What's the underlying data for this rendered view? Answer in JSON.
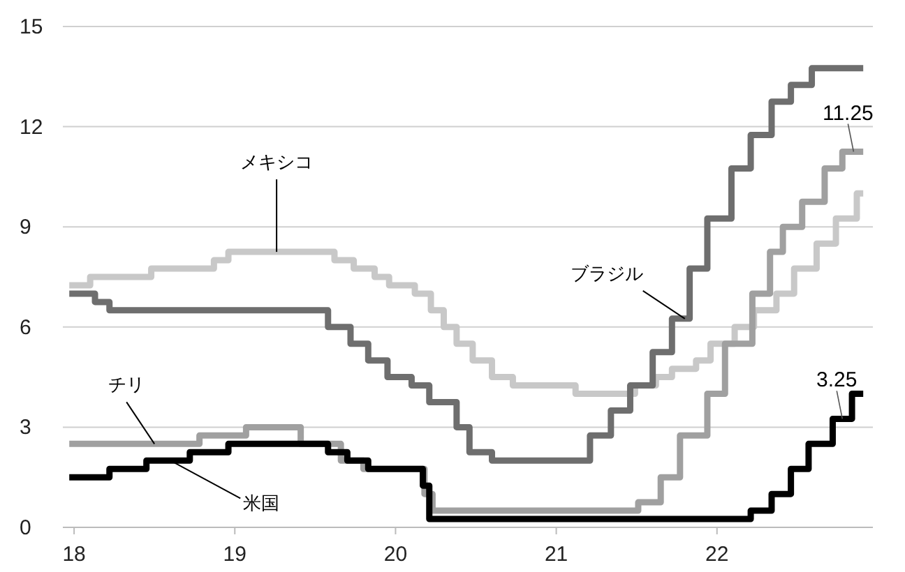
{
  "chart_data": {
    "type": "step",
    "xlim": [
      17.93,
      22.97
    ],
    "xticks": [
      18,
      19,
      20,
      21,
      22
    ],
    "ylim": [
      0,
      15
    ],
    "yticks": [
      0,
      3,
      6,
      9,
      12,
      15
    ],
    "grid": "y",
    "series": [
      {
        "name": "メキシコ",
        "color": "#c8c8c8",
        "x": [
          17.97,
          18.1,
          18.48,
          18.87,
          18.96,
          19.62,
          19.74,
          19.87,
          19.96,
          20.12,
          20.22,
          20.3,
          20.38,
          20.48,
          20.6,
          20.73,
          21.12,
          21.49,
          21.62,
          21.72,
          21.87,
          21.96,
          22.11,
          22.23,
          22.37,
          22.48,
          22.62,
          22.74,
          22.87,
          22.91
        ],
        "values": [
          7.25,
          7.5,
          7.75,
          8.0,
          8.25,
          8.0,
          7.75,
          7.5,
          7.25,
          7.0,
          6.5,
          6.0,
          5.5,
          5.0,
          4.5,
          4.25,
          4.0,
          4.25,
          4.5,
          4.75,
          5.0,
          5.5,
          6.0,
          6.5,
          7.0,
          7.75,
          8.5,
          9.25,
          10.0,
          10.0
        ]
      },
      {
        "name": "ブラジル",
        "color": "#6e6e6e",
        "x": [
          17.97,
          18.13,
          18.22,
          19.58,
          19.72,
          19.83,
          19.95,
          20.1,
          20.21,
          20.38,
          20.46,
          20.6,
          21.21,
          21.34,
          21.46,
          21.6,
          21.72,
          21.83,
          21.94,
          22.09,
          22.21,
          22.34,
          22.46,
          22.59,
          22.91
        ],
        "values": [
          7.0,
          6.75,
          6.5,
          6.0,
          5.5,
          5.0,
          4.5,
          4.25,
          3.75,
          3.0,
          2.25,
          2.0,
          2.75,
          3.5,
          4.25,
          5.25,
          6.25,
          7.75,
          9.25,
          10.75,
          11.75,
          12.75,
          13.25,
          13.75,
          13.75
        ]
      },
      {
        "name": "チリ",
        "color": "#a0a0a0",
        "x": [
          17.97,
          18.78,
          19.07,
          19.41,
          19.66,
          19.8,
          20.18,
          20.23,
          21.51,
          21.65,
          21.77,
          21.94,
          22.05,
          22.22,
          22.33,
          22.41,
          22.53,
          22.67,
          22.78,
          22.91
        ],
        "values": [
          2.5,
          2.75,
          3.0,
          2.5,
          2.0,
          1.75,
          1.0,
          0.5,
          0.75,
          1.5,
          2.75,
          4.0,
          5.5,
          7.0,
          8.25,
          9.0,
          9.75,
          10.75,
          11.25,
          11.25
        ]
      },
      {
        "name": "米国",
        "color": "#000000",
        "x": [
          17.97,
          18.22,
          18.45,
          18.72,
          18.96,
          19.58,
          19.7,
          19.83,
          20.17,
          20.21,
          22.21,
          22.34,
          22.46,
          22.57,
          22.72,
          22.84,
          22.91
        ],
        "values": [
          1.5,
          1.75,
          2.0,
          2.25,
          2.5,
          2.25,
          2.0,
          1.75,
          1.25,
          0.25,
          0.5,
          1.0,
          1.75,
          2.5,
          3.25,
          4.0,
          4.0
        ]
      }
    ],
    "annotations": [
      {
        "text": "11.25",
        "x": 22.85,
        "y": 11.25
      },
      {
        "text": "3.25",
        "x": 22.78,
        "y": 3.25
      }
    ]
  }
}
